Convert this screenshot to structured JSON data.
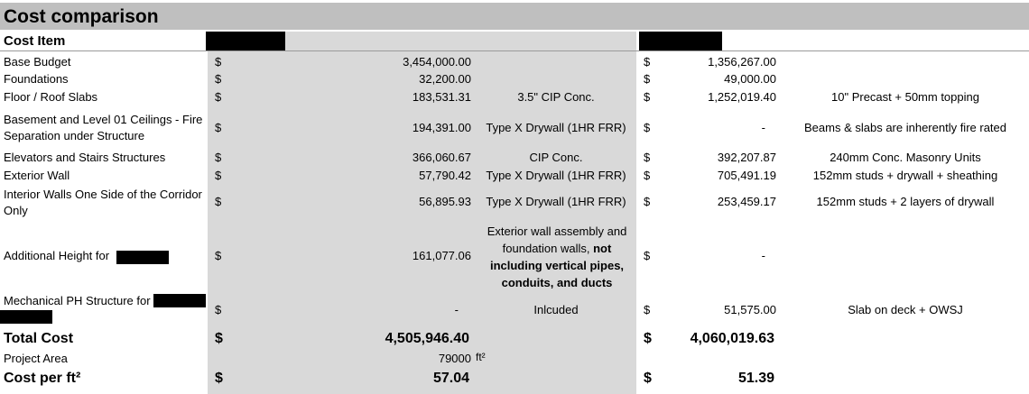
{
  "title": "Cost comparison",
  "header": {
    "cost_item": "Cost Item"
  },
  "currency": "$",
  "rows": [
    {
      "item": "Base Budget",
      "a_value": "3,454,000.00",
      "a_note": "",
      "b_value": "1,356,267.00",
      "b_note": ""
    },
    {
      "item": "Foundations",
      "a_value": "32,200.00",
      "a_note": "",
      "b_value": "49,000.00",
      "b_note": ""
    },
    {
      "item": "Floor / Roof Slabs",
      "a_value": "183,531.31",
      "a_note": "3.5\" CIP Conc.",
      "b_value": "1,252,019.40",
      "b_note": "10\" Precast + 50mm topping"
    },
    {
      "item": "Basement and Level 01 Ceilings -  Fire Separation under Structure",
      "a_value": "194,391.00",
      "a_note": "Type X Drywall (1HR FRR)",
      "b_value": "-",
      "b_note": "Beams & slabs are inherently fire rated"
    },
    {
      "item": "Elevators and Stairs Structures",
      "a_value": "366,060.67",
      "a_note": "CIP Conc.",
      "b_value": "392,207.87",
      "b_note": "240mm Conc. Masonry Units"
    },
    {
      "item": "Exterior Wall",
      "a_value": "57,790.42",
      "a_note": "Type X Drywall (1HR FRR)",
      "b_value": "705,491.19",
      "b_note": "152mm studs + drywall + sheathing"
    },
    {
      "item": "Interior Walls One Side of the Corridor Only",
      "a_value": "56,895.93",
      "a_note": "Type X Drywall (1HR FRR)",
      "b_value": "253,459.17",
      "b_note": "152mm studs + 2 layers of drywall"
    },
    {
      "item": "Additional Height for",
      "a_value": "161,077.06",
      "a_note_plain": "Exterior wall assembly and foundation walls, ",
      "a_note_bold": "not including vertical pipes, conduits, and ducts",
      "b_value": "-",
      "b_note": ""
    },
    {
      "item": "Mechanical PH Structure for",
      "a_value": "-",
      "a_note": "Inlcuded",
      "b_value": "51,575.00",
      "b_note": "Slab on deck + OWSJ"
    }
  ],
  "totals": {
    "total_label": "Total Cost",
    "total_a": "4,505,946.40",
    "total_b": "4,060,019.63",
    "area_label": "Project Area",
    "area_value": "79000",
    "area_unit": "ft²",
    "per_label": "Cost per ft²",
    "per_a": "57.04",
    "per_b": "51.39"
  },
  "colors": {
    "title_bg": "#bfbfbf",
    "header_bg": "#d9d9d9",
    "column_shade": "#d9d9d9",
    "redaction": "#000000"
  }
}
